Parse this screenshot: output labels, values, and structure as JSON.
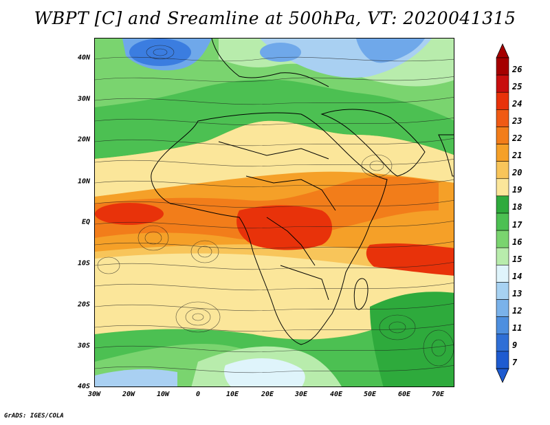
{
  "title": "WBPT [C] and Sreamline at 500hPa, VT: 2020041315",
  "footer": "GrADS: IGES/COLA",
  "lat_labels": [
    "40N",
    "30N",
    "20N",
    "10N",
    "EQ",
    "10S",
    "20S",
    "30S",
    "40S"
  ],
  "lon_labels": [
    "30W",
    "20W",
    "10W",
    "0",
    "10E",
    "20E",
    "30E",
    "40E",
    "50E",
    "60E",
    "70E"
  ],
  "colorbar": {
    "labels": [
      "26",
      "25",
      "24",
      "23",
      "22",
      "21",
      "20",
      "19",
      "18",
      "17",
      "16",
      "15",
      "14",
      "13",
      "12",
      "11",
      "9",
      "7"
    ],
    "colors": [
      "#a50000",
      "#c80e0e",
      "#e8320a",
      "#f05a14",
      "#f27d1a",
      "#f5a028",
      "#f8c55a",
      "#fbe69a",
      "#2eaa3c",
      "#4cc052",
      "#7ad46f",
      "#b8ecac",
      "#dff4fb",
      "#a7d2f2",
      "#7ab2ea",
      "#4e8fdf",
      "#2f6fd6",
      "#1e5bd0"
    ],
    "top_color": "#a50000",
    "bottom_color": "#1e5bd0"
  },
  "field_colors": {
    "blue_dark": "#3b7de0",
    "blue_mid": "#6fa8ea",
    "blue_light": "#a9d0f2",
    "pale": "#dff4fb",
    "green_light": "#b8ecac",
    "green_mid": "#7ad46f",
    "green_dark": "#2eaa3c",
    "yellow_pale": "#fbe69a",
    "yellow": "#f8c55a",
    "orange": "#f5a028",
    "orange_dark": "#f27d1a",
    "red_orange": "#e8320a"
  }
}
